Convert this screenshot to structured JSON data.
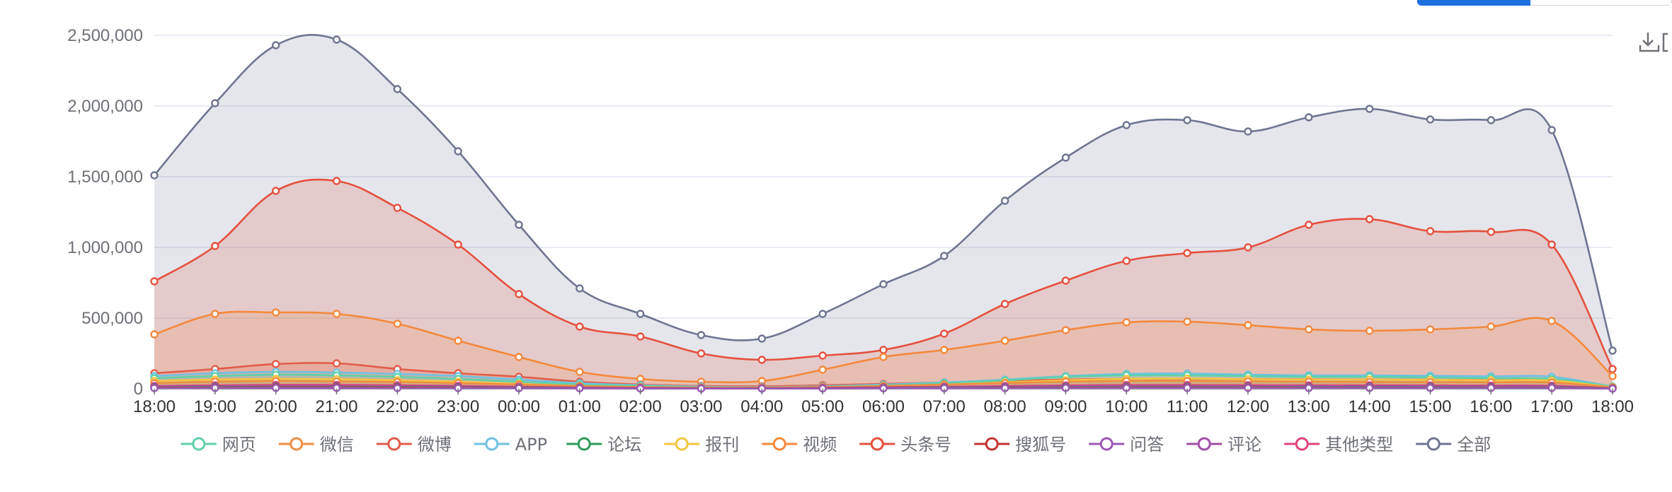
{
  "chart_data": {
    "type": "area",
    "title": "",
    "xlabel": "",
    "ylabel": "",
    "ylim": [
      0,
      2500000
    ],
    "yticks": [
      "0",
      "500,000",
      "1,000,000",
      "1,500,000",
      "2,000,000",
      "2,500,000"
    ],
    "ytick_values": [
      0,
      500000,
      1000000,
      1500000,
      2000000,
      2500000
    ],
    "categories": [
      "18:00",
      "19:00",
      "20:00",
      "21:00",
      "22:00",
      "23:00",
      "00:00",
      "01:00",
      "02:00",
      "03:00",
      "04:00",
      "05:00",
      "06:00",
      "07:00",
      "08:00",
      "09:00",
      "10:00",
      "11:00",
      "12:00",
      "13:00",
      "14:00",
      "15:00",
      "16:00",
      "17:00",
      "18:00"
    ],
    "grid": true,
    "legend_position": "bottom",
    "series": [
      {
        "name": "网页",
        "color": "#5fd1a6",
        "values": [
          75000,
          90000,
          100000,
          95000,
          85000,
          70000,
          50000,
          30000,
          20000,
          12000,
          10000,
          15000,
          25000,
          40000,
          60000,
          85000,
          95000,
          95000,
          90000,
          85000,
          85000,
          80000,
          75000,
          70000,
          15000
        ]
      },
      {
        "name": "微信",
        "color": "#ef8d42",
        "values": [
          40000,
          50000,
          55000,
          52000,
          48000,
          40000,
          30000,
          20000,
          12000,
          8000,
          8000,
          12000,
          20000,
          30000,
          40000,
          50000,
          55000,
          55000,
          52000,
          50000,
          48000,
          47000,
          46000,
          44000,
          10000
        ]
      },
      {
        "name": "微博",
        "color": "#e25c4b",
        "values": [
          110000,
          140000,
          175000,
          180000,
          140000,
          110000,
          85000,
          50000,
          30000,
          20000,
          18000,
          25000,
          35000,
          45000,
          55000,
          65000,
          70000,
          70000,
          68000,
          66000,
          65000,
          64000,
          62000,
          60000,
          15000
        ]
      },
      {
        "name": "APP",
        "color": "#6ec1e4",
        "values": [
          90000,
          110000,
          120000,
          115000,
          105000,
          90000,
          65000,
          40000,
          25000,
          15000,
          12000,
          18000,
          30000,
          45000,
          65000,
          90000,
          105000,
          108000,
          100000,
          95000,
          95000,
          92000,
          88000,
          85000,
          15000
        ]
      },
      {
        "name": "论坛",
        "color": "#2e9b5c",
        "values": [
          10000,
          12000,
          13000,
          13000,
          12000,
          10000,
          8000,
          5000,
          3000,
          2000,
          2000,
          3000,
          5000,
          7000,
          9000,
          11000,
          12000,
          12000,
          12000,
          11000,
          11000,
          11000,
          10000,
          10000,
          3000
        ]
      },
      {
        "name": "报刊",
        "color": "#f4c540",
        "values": [
          55000,
          65000,
          70000,
          68000,
          60000,
          50000,
          35000,
          20000,
          12000,
          8000,
          8000,
          12000,
          20000,
          30000,
          45000,
          60000,
          70000,
          72000,
          68000,
          65000,
          65000,
          63000,
          60000,
          58000,
          10000
        ]
      },
      {
        "name": "视频",
        "color": "#f5883b",
        "values": [
          385000,
          530000,
          540000,
          530000,
          460000,
          340000,
          225000,
          120000,
          70000,
          50000,
          55000,
          135000,
          225000,
          275000,
          340000,
          415000,
          470000,
          475000,
          450000,
          420000,
          410000,
          420000,
          440000,
          480000,
          90000
        ]
      },
      {
        "name": "头条号",
        "color": "#e5503f",
        "values": [
          760000,
          1010000,
          1400000,
          1470000,
          1280000,
          1020000,
          670000,
          440000,
          370000,
          250000,
          205000,
          235000,
          275000,
          390000,
          600000,
          765000,
          905000,
          960000,
          1000000,
          1160000,
          1200000,
          1115000,
          1110000,
          1020000,
          140000
        ]
      },
      {
        "name": "搜狐号",
        "color": "#c23531",
        "values": [
          8000,
          9000,
          10000,
          10000,
          9000,
          8000,
          6000,
          4000,
          3000,
          2000,
          2000,
          3000,
          4000,
          5000,
          7000,
          8000,
          9000,
          9000,
          9000,
          8000,
          8000,
          8000,
          8000,
          8000,
          2000
        ]
      },
      {
        "name": "问答",
        "color": "#9b59b6",
        "values": [
          5000,
          6000,
          6000,
          6000,
          5000,
          5000,
          4000,
          3000,
          2000,
          1500,
          1500,
          2000,
          3000,
          4000,
          5000,
          6000,
          6000,
          6000,
          6000,
          6000,
          6000,
          6000,
          6000,
          6000,
          1000
        ]
      },
      {
        "name": "评论",
        "color": "#a04ea6",
        "values": [
          15000,
          18000,
          20000,
          20000,
          18000,
          15000,
          11000,
          7000,
          5000,
          3000,
          3000,
          5000,
          8000,
          11000,
          14000,
          17000,
          19000,
          19000,
          18000,
          17000,
          17000,
          17000,
          16000,
          16000,
          3000
        ]
      },
      {
        "name": "其他类型",
        "color": "#e0457b",
        "values": [
          20000,
          25000,
          28000,
          28000,
          25000,
          21000,
          15000,
          10000,
          7000,
          5000,
          5000,
          7000,
          11000,
          15000,
          20000,
          24000,
          27000,
          27000,
          26000,
          25000,
          25000,
          24000,
          23000,
          22000,
          4000
        ]
      },
      {
        "name": "全部",
        "color": "#6e7591",
        "values": [
          1510000,
          2020000,
          2430000,
          2470000,
          2120000,
          1680000,
          1160000,
          710000,
          530000,
          380000,
          355000,
          530000,
          740000,
          940000,
          1330000,
          1635000,
          1865000,
          1900000,
          1820000,
          1920000,
          1980000,
          1905000,
          1900000,
          1830000,
          270000
        ]
      }
    ]
  }
}
